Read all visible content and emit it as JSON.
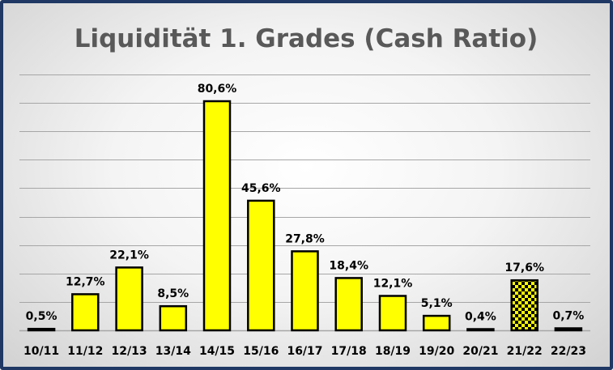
{
  "chart_data": {
    "type": "bar",
    "title": "Liquidität 1. Grades (Cash Ratio)",
    "xlabel": "",
    "ylabel": "",
    "ylim": [
      0,
      90
    ],
    "grid": true,
    "legend": "none",
    "categories": [
      "10/11",
      "11/12",
      "12/13",
      "13/14",
      "14/15",
      "15/16",
      "16/17",
      "17/18",
      "18/19",
      "19/20",
      "20/21",
      "21/22",
      "22/23"
    ],
    "values": [
      0.5,
      12.7,
      22.1,
      8.5,
      80.6,
      45.6,
      27.8,
      18.4,
      12.1,
      5.1,
      0.4,
      17.6,
      0.7
    ],
    "data_labels": [
      "0,5%",
      "12,7%",
      "22,1%",
      "8,5%",
      "80,6%",
      "45,6%",
      "27,8%",
      "18,4%",
      "12,1%",
      "5,1%",
      "0,4%",
      "17,6%",
      "0,7%"
    ],
    "highlight_category": "21/22",
    "colors": {
      "bar_fill": "#ffff00",
      "bar_stroke": "#000000",
      "highlight_pattern_dark": "#000000",
      "highlight_pattern_light": "#ffff00",
      "gridline": "#a6a6a6",
      "title": "#595959",
      "frame_border": "#1f3864"
    }
  }
}
